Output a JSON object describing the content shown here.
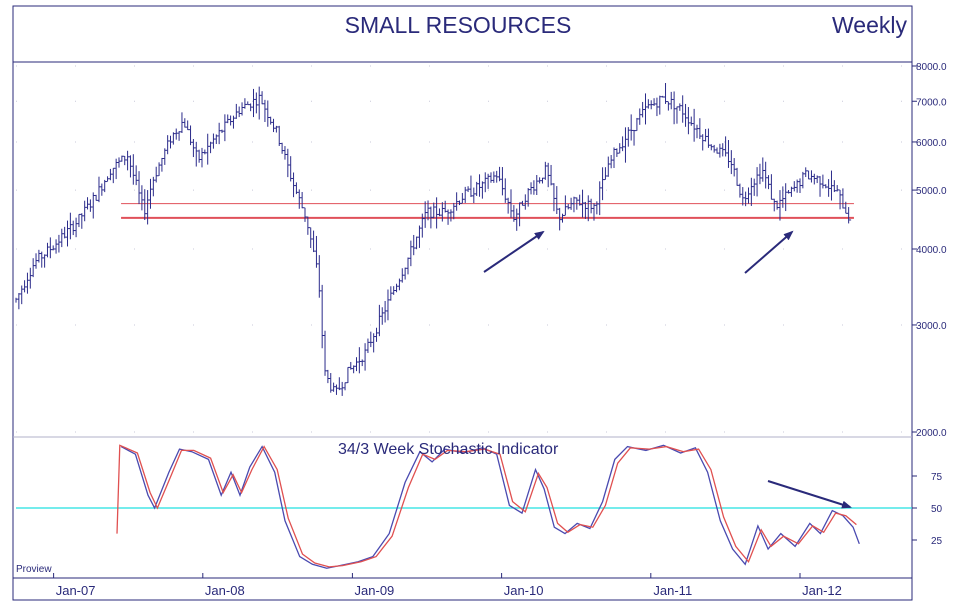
{
  "title": "SMALL RESOURCES",
  "period": "Weekly",
  "watermark": "Proview",
  "colors": {
    "price": "#2a2a8a",
    "support": "#e0505a",
    "stoch_k": "#4a4ab0",
    "stoch_d": "#e05050",
    "midline": "#20e0e0",
    "frame": "#2a2a7a",
    "arrow": "#2a2a7a"
  },
  "chart_data": [
    {
      "type": "ohlc",
      "title": "SMALL RESOURCES",
      "scale": "log",
      "ylim": [
        2000,
        8000
      ],
      "y_ticks": [
        "8000.0",
        "7000.0",
        "6000.0",
        "5000.0",
        "4000.0",
        "3000.0",
        "2000.0"
      ],
      "y_tick_values": [
        8000,
        7000,
        6000,
        5000,
        4000,
        3000,
        2000
      ],
      "x_tick_labels": [
        "Jan-07",
        "Jan-08",
        "Jan-09",
        "Jan-10",
        "Jan-11",
        "Jan-12"
      ],
      "x_tick_dates": [
        "2007-01-01",
        "2008-01-01",
        "2009-01-01",
        "2010-01-01",
        "2011-01-01",
        "2012-01-01"
      ],
      "xlim": [
        "2006-10-01",
        "2012-10-01"
      ],
      "price_path": [
        [
          "2006-10-01",
          3300
        ],
        [
          "2006-11-15",
          3800
        ],
        [
          "2007-01-01",
          4050
        ],
        [
          "2007-03-01",
          4450
        ],
        [
          "2007-04-15",
          4900
        ],
        [
          "2007-05-20",
          5400
        ],
        [
          "2007-07-01",
          5700
        ],
        [
          "2007-08-10",
          4600
        ],
        [
          "2007-09-01",
          5200
        ],
        [
          "2007-10-15",
          6100
        ],
        [
          "2007-11-15",
          6500
        ],
        [
          "2007-12-20",
          5600
        ],
        [
          "2008-02-01",
          6100
        ],
        [
          "2008-04-01",
          6800
        ],
        [
          "2008-05-20",
          7100
        ],
        [
          "2008-07-01",
          6200
        ],
        [
          "2008-08-10",
          5100
        ],
        [
          "2008-09-10",
          4500
        ],
        [
          "2008-10-10",
          3600
        ],
        [
          "2008-10-25",
          2500
        ],
        [
          "2008-11-20",
          2300
        ],
        [
          "2008-12-20",
          2500
        ],
        [
          "2009-02-01",
          2700
        ],
        [
          "2009-04-01",
          3300
        ],
        [
          "2009-05-20",
          3900
        ],
        [
          "2009-07-01",
          4600
        ],
        [
          "2009-08-15",
          4600
        ],
        [
          "2009-10-01",
          4900
        ],
        [
          "2009-11-15",
          5100
        ],
        [
          "2009-12-20",
          5300
        ],
        [
          "2010-02-01",
          4500
        ],
        [
          "2010-03-01",
          4900
        ],
        [
          "2010-04-20",
          5400
        ],
        [
          "2010-05-20",
          4500
        ],
        [
          "2010-07-01",
          4800
        ],
        [
          "2010-08-15",
          4700
        ],
        [
          "2010-10-01",
          5700
        ],
        [
          "2010-11-15",
          6300
        ],
        [
          "2010-12-20",
          6800
        ],
        [
          "2011-02-01",
          7100
        ],
        [
          "2011-03-15",
          6800
        ],
        [
          "2011-04-15",
          6400
        ],
        [
          "2011-06-01",
          5900
        ],
        [
          "2011-07-15",
          5600
        ],
        [
          "2011-08-15",
          4800
        ],
        [
          "2011-09-01",
          5100
        ],
        [
          "2011-10-01",
          5400
        ],
        [
          "2011-11-01",
          4700
        ],
        [
          "2011-12-15",
          5000
        ],
        [
          "2012-01-15",
          5300
        ],
        [
          "2012-02-20",
          5200
        ],
        [
          "2012-04-01",
          4950
        ],
        [
          "2012-05-01",
          4500
        ]
      ],
      "horizontal_lines": [
        4500,
        4750
      ]
    },
    {
      "type": "line",
      "title": "34/3 Week Stochastic Indicator",
      "ylim": [
        0,
        100
      ],
      "y_ticks": [
        "75",
        "50",
        "25"
      ],
      "y_tick_values": [
        75,
        50,
        25
      ],
      "reference_line": 50,
      "series": [
        {
          "key": "k",
          "points": [
            [
              "2007-06-15",
              98
            ],
            [
              "2007-07-20",
              92
            ],
            [
              "2007-08-20",
              60
            ],
            [
              "2007-09-05",
              50
            ],
            [
              "2007-10-10",
              78
            ],
            [
              "2007-11-05",
              96
            ],
            [
              "2007-12-05",
              94
            ],
            [
              "2008-01-15",
              88
            ],
            [
              "2008-02-15",
              60
            ],
            [
              "2008-03-10",
              78
            ],
            [
              "2008-04-01",
              60
            ],
            [
              "2008-04-25",
              82
            ],
            [
              "2008-05-25",
              98
            ],
            [
              "2008-06-25",
              78
            ],
            [
              "2008-07-20",
              40
            ],
            [
              "2008-08-25",
              12
            ],
            [
              "2008-09-25",
              6
            ],
            [
              "2008-10-30",
              3
            ],
            [
              "2008-12-01",
              5
            ],
            [
              "2009-01-15",
              8
            ],
            [
              "2009-02-20",
              12
            ],
            [
              "2009-04-01",
              30
            ],
            [
              "2009-05-10",
              70
            ],
            [
              "2009-06-15",
              94
            ],
            [
              "2009-07-15",
              86
            ],
            [
              "2009-08-15",
              96
            ],
            [
              "2009-09-30",
              93
            ],
            [
              "2009-11-15",
              97
            ],
            [
              "2009-12-20",
              92
            ],
            [
              "2010-01-20",
              52
            ],
            [
              "2010-02-20",
              46
            ],
            [
              "2010-03-25",
              80
            ],
            [
              "2010-04-15",
              65
            ],
            [
              "2010-05-10",
              35
            ],
            [
              "2010-06-05",
              30
            ],
            [
              "2010-07-05",
              38
            ],
            [
              "2010-08-05",
              34
            ],
            [
              "2010-09-05",
              55
            ],
            [
              "2010-10-05",
              88
            ],
            [
              "2010-11-05",
              98
            ],
            [
              "2010-12-20",
              95
            ],
            [
              "2011-02-01",
              99
            ],
            [
              "2011-03-15",
              93
            ],
            [
              "2011-04-20",
              97
            ],
            [
              "2011-05-20",
              78
            ],
            [
              "2011-06-20",
              40
            ],
            [
              "2011-07-20",
              18
            ],
            [
              "2011-08-20",
              6
            ],
            [
              "2011-09-20",
              36
            ],
            [
              "2011-10-15",
              18
            ],
            [
              "2011-11-15",
              30
            ],
            [
              "2011-12-20",
              20
            ],
            [
              "2012-01-25",
              38
            ],
            [
              "2012-02-20",
              30
            ],
            [
              "2012-03-20",
              48
            ],
            [
              "2012-04-15",
              44
            ],
            [
              "2012-05-10",
              35
            ],
            [
              "2012-05-25",
              22
            ]
          ]
        },
        {
          "key": "d",
          "points": [
            [
              "2007-06-05",
              30
            ],
            [
              "2007-06-12",
              99
            ],
            [
              "2007-07-25",
              93
            ],
            [
              "2007-08-25",
              62
            ],
            [
              "2007-09-12",
              50
            ],
            [
              "2007-10-15",
              75
            ],
            [
              "2007-11-10",
              95
            ],
            [
              "2007-12-10",
              95
            ],
            [
              "2008-01-20",
              89
            ],
            [
              "2008-02-20",
              62
            ],
            [
              "2008-03-15",
              76
            ],
            [
              "2008-04-05",
              62
            ],
            [
              "2008-04-30",
              80
            ],
            [
              "2008-05-30",
              98
            ],
            [
              "2008-07-01",
              80
            ],
            [
              "2008-07-28",
              42
            ],
            [
              "2008-09-01",
              14
            ],
            [
              "2008-10-01",
              7
            ],
            [
              "2008-11-05",
              4
            ],
            [
              "2008-12-08",
              5
            ],
            [
              "2009-01-22",
              8
            ],
            [
              "2009-02-28",
              12
            ],
            [
              "2009-04-08",
              28
            ],
            [
              "2009-05-18",
              66
            ],
            [
              "2009-06-22",
              92
            ],
            [
              "2009-07-22",
              88
            ],
            [
              "2009-08-22",
              95
            ],
            [
              "2009-10-05",
              94
            ],
            [
              "2009-11-20",
              96
            ],
            [
              "2009-12-28",
              92
            ],
            [
              "2010-01-28",
              55
            ],
            [
              "2010-02-28",
              47
            ],
            [
              "2010-04-01",
              77
            ],
            [
              "2010-04-22",
              66
            ],
            [
              "2010-05-18",
              38
            ],
            [
              "2010-06-12",
              31
            ],
            [
              "2010-07-12",
              37
            ],
            [
              "2010-08-12",
              35
            ],
            [
              "2010-09-12",
              52
            ],
            [
              "2010-10-12",
              85
            ],
            [
              "2010-11-12",
              97
            ],
            [
              "2010-12-28",
              96
            ],
            [
              "2011-02-08",
              98
            ],
            [
              "2011-03-22",
              94
            ],
            [
              "2011-04-28",
              96
            ],
            [
              "2011-05-28",
              80
            ],
            [
              "2011-06-28",
              43
            ],
            [
              "2011-07-28",
              20
            ],
            [
              "2011-08-28",
              8
            ],
            [
              "2011-09-28",
              33
            ],
            [
              "2011-10-22",
              20
            ],
            [
              "2011-11-22",
              28
            ],
            [
              "2011-12-28",
              22
            ],
            [
              "2012-02-01",
              36
            ],
            [
              "2012-02-28",
              31
            ],
            [
              "2012-03-28",
              46
            ],
            [
              "2012-04-22",
              44
            ],
            [
              "2012-05-18",
              37
            ]
          ]
        }
      ]
    }
  ]
}
